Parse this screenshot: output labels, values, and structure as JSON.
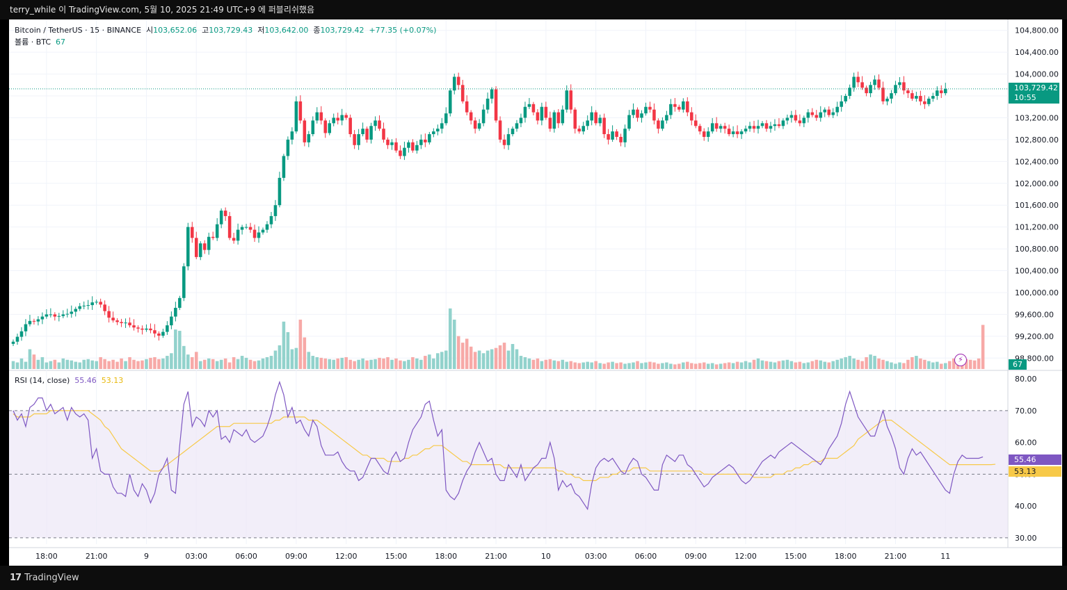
{
  "header": {
    "text": "terry_while 이 TradingView.com, 5월 10, 2025 21:49 UTC+9 에 퍼블리쉬했음"
  },
  "legend": {
    "symbol": "Bitcoin / TetherUS · 15 · BINANCE",
    "open_label": "시",
    "open": "103,652.06",
    "high_label": "고",
    "high": "103,729.43",
    "low_label": "저",
    "low": "103,642.00",
    "close_label": "종",
    "close": "103,729.42",
    "change": "+77.35 (+0.07%)",
    "volume_label": "볼륨 · BTC",
    "volume": "67"
  },
  "rsi_legend": {
    "label": "RSI (14, close)",
    "rsi": "55.46",
    "ma": "53.13"
  },
  "price_axis": {
    "current_price": "103,729.42",
    "countdown": "10:55",
    "volume_tag": "67",
    "rsi_tag": "55.46",
    "rsi_ma_tag": "53.13"
  },
  "footer": {
    "brand": "TradingView",
    "brand_mark": "17"
  },
  "colors": {
    "up": "#089981",
    "down": "#f23645",
    "rsi": "#7e57c2",
    "rsi_ma": "#f7c948",
    "band": "#ede7f6"
  },
  "chart_data": [
    {
      "type": "candlestick",
      "ylim": [
        98600,
        105000
      ],
      "y_ticks": [
        98800,
        99200,
        99600,
        100000,
        100400,
        100800,
        101200,
        101600,
        102000,
        102400,
        102800,
        103200,
        103600,
        104000,
        104400,
        104800
      ],
      "y_tick_labels": [
        "98,800.00",
        "99,200.00",
        "99,600.00",
        "100,000.00",
        "100,400.00",
        "100,800.00",
        "101,200.00",
        "101,600.00",
        "102,000.00",
        "102,400.00",
        "102,800.00",
        "103,200.00",
        "103,600.00",
        "104,000.00",
        "104,400.00",
        "104,800.00"
      ],
      "x_tick_labels": [
        "18:00",
        "21:00",
        "9",
        "03:00",
        "06:00",
        "09:00",
        "12:00",
        "15:00",
        "18:00",
        "21:00",
        "10",
        "03:00",
        "06:00",
        "09:00",
        "12:00",
        "15:00",
        "18:00",
        "21:00",
        "11"
      ],
      "x_tick_index": [
        8,
        20,
        32,
        44,
        56,
        68,
        80,
        92,
        104,
        116,
        128,
        140,
        152,
        164,
        176,
        188,
        200,
        212,
        224
      ],
      "close": [
        99100,
        99190,
        99290,
        99420,
        99480,
        99470,
        99510,
        99560,
        99600,
        99600,
        99560,
        99570,
        99600,
        99610,
        99650,
        99700,
        99750,
        99760,
        99770,
        99820,
        99830,
        99780,
        99660,
        99540,
        99490,
        99460,
        99440,
        99450,
        99400,
        99360,
        99340,
        99320,
        99340,
        99310,
        99250,
        99210,
        99280,
        99400,
        99560,
        99720,
        99900,
        100480,
        101200,
        101000,
        100650,
        100900,
        100780,
        101020,
        101000,
        101250,
        101500,
        101400,
        101000,
        100950,
        101150,
        101200,
        101200,
        101150,
        101000,
        101100,
        101150,
        101250,
        101400,
        101600,
        102100,
        102500,
        102800,
        102950,
        103500,
        103150,
        102750,
        102900,
        103150,
        103300,
        103150,
        102920,
        103100,
        103200,
        103150,
        103250,
        103200,
        102900,
        102700,
        102900,
        103000,
        102800,
        103050,
        103150,
        103000,
        102800,
        102700,
        102750,
        102600,
        102500,
        102650,
        102750,
        102600,
        102700,
        102800,
        102750,
        102900,
        102950,
        103000,
        103100,
        103280,
        103700,
        103950,
        103800,
        103500,
        103300,
        103150,
        103000,
        103100,
        103350,
        103550,
        103720,
        103150,
        102800,
        102700,
        102900,
        103000,
        103100,
        103200,
        103400,
        103450,
        103300,
        103150,
        103400,
        103200,
        103000,
        103300,
        103100,
        103350,
        103700,
        103350,
        103000,
        102950,
        103050,
        103150,
        103300,
        103100,
        103200,
        102900,
        102800,
        102950,
        102850,
        102750,
        103000,
        103250,
        103350,
        103200,
        103280,
        103400,
        103350,
        103150,
        103000,
        103150,
        103250,
        103450,
        103400,
        103350,
        103500,
        103300,
        103150,
        103050,
        102950,
        102850,
        102950,
        103100,
        103000,
        103050,
        103000,
        102900,
        102950,
        102900,
        102950,
        103000,
        103050,
        103000,
        103050,
        103100,
        103000,
        103050,
        103080,
        103050,
        103150,
        103200,
        103250,
        103150,
        103100,
        103200,
        103300,
        103250,
        103200,
        103300,
        103350,
        103250,
        103300,
        103400,
        103500,
        103600,
        103750,
        103950,
        103850,
        103750,
        103650,
        103800,
        103900,
        103750,
        103500,
        103550,
        103650,
        103800,
        103850,
        103700,
        103650,
        103550,
        103600,
        103500,
        103450,
        103550,
        103600,
        103700,
        103650,
        103729
      ]
    },
    {
      "type": "bar",
      "name": "Volume",
      "ylim": [
        0,
        95
      ],
      "values": [
        12,
        10,
        16,
        11,
        30,
        22,
        14,
        18,
        10,
        12,
        14,
        10,
        16,
        14,
        13,
        11,
        10,
        14,
        15,
        13,
        12,
        18,
        15,
        12,
        14,
        11,
        16,
        12,
        18,
        14,
        12,
        13,
        15,
        17,
        18,
        15,
        16,
        20,
        24,
        60,
        58,
        35,
        22,
        18,
        26,
        12,
        14,
        16,
        15,
        12,
        14,
        16,
        10,
        18,
        15,
        20,
        17,
        14,
        12,
        13,
        16,
        18,
        20,
        28,
        36,
        72,
        56,
        30,
        32,
        75,
        48,
        26,
        20,
        18,
        17,
        16,
        15,
        14,
        16,
        17,
        18,
        14,
        12,
        14,
        16,
        13,
        14,
        15,
        17,
        16,
        18,
        14,
        16,
        13,
        12,
        14,
        18,
        16,
        14,
        20,
        22,
        16,
        24,
        26,
        28,
        92,
        75,
        50,
        40,
        46,
        34,
        26,
        28,
        24,
        28,
        30,
        32,
        36,
        40,
        28,
        38,
        30,
        20,
        18,
        16,
        14,
        16,
        12,
        14,
        15,
        13,
        12,
        14,
        11,
        12,
        10,
        9,
        10,
        11,
        10,
        12,
        9,
        8,
        10,
        11,
        9,
        10,
        8,
        9,
        10,
        12,
        9,
        10,
        11,
        10,
        8,
        9,
        10,
        8,
        7,
        8,
        10,
        11,
        9,
        8,
        9,
        10,
        8,
        9,
        7,
        8,
        9,
        10,
        9,
        11,
        10,
        12,
        10,
        14,
        16,
        13,
        12,
        11,
        10,
        12,
        13,
        14,
        12,
        10,
        11,
        9,
        10,
        12,
        14,
        13,
        11,
        10,
        12,
        14,
        16,
        18,
        20,
        16,
        14,
        12,
        18,
        22,
        20,
        16,
        14,
        12,
        10,
        8,
        10,
        9,
        14,
        18,
        20,
        16,
        14,
        12,
        10,
        11,
        8,
        9,
        12,
        16,
        20,
        18,
        15,
        14,
        13,
        16,
        67
      ],
      "current": 67
    },
    {
      "type": "line",
      "name": "RSI (14, close)",
      "ylim": [
        28,
        82
      ],
      "y_ticks": [
        30,
        40,
        50,
        60,
        70,
        80
      ],
      "y_tick_labels": [
        "30.00",
        "40.00",
        "50.00",
        "60.00",
        "70.00",
        "80.00"
      ],
      "band": [
        30,
        70
      ],
      "midline": 50,
      "series": [
        {
          "name": "RSI",
          "values": [
            70,
            67,
            69,
            65,
            71,
            72,
            74,
            74,
            70,
            72,
            69,
            70,
            71,
            67,
            71,
            69,
            68,
            69,
            67,
            55,
            58,
            51,
            50,
            50,
            46,
            44,
            44,
            43,
            50,
            45,
            43,
            47,
            45,
            41,
            44,
            50,
            52,
            55,
            45,
            44,
            59,
            72,
            76,
            65,
            68,
            67,
            65,
            70,
            68,
            70,
            61,
            62,
            60,
            64,
            63,
            62,
            64,
            61,
            60,
            61,
            62,
            65,
            69,
            75,
            79,
            75,
            68,
            71,
            66,
            67,
            64,
            62,
            67,
            65,
            59,
            56,
            56,
            56,
            57,
            54,
            52,
            51,
            51,
            48,
            49,
            52,
            55,
            55,
            53,
            51,
            50,
            55,
            57,
            54,
            55,
            60,
            64,
            66,
            68,
            72,
            73,
            67,
            62,
            64,
            45,
            43,
            42,
            44,
            48,
            51,
            53,
            57,
            60,
            57,
            54,
            55,
            50,
            48,
            48,
            53,
            51,
            49,
            53,
            48,
            50,
            52,
            53,
            55,
            55,
            60,
            55,
            45,
            48,
            46,
            47,
            44,
            43,
            41,
            39,
            47,
            52,
            54,
            55,
            54,
            55,
            53,
            51,
            50,
            53,
            55,
            54,
            50,
            49,
            47,
            45,
            45,
            53,
            56,
            55,
            54,
            56,
            56,
            53,
            52,
            50,
            48,
            46,
            47,
            49,
            50,
            51,
            52,
            53,
            52,
            50,
            48,
            47,
            48,
            50,
            52,
            54,
            55,
            56,
            55,
            57,
            58,
            59,
            60,
            59,
            58,
            57,
            56,
            55,
            54,
            53,
            55,
            58,
            60,
            62,
            66,
            72,
            76,
            72,
            68,
            66,
            64,
            62,
            62,
            66,
            70,
            65,
            62,
            58,
            52,
            50,
            55,
            58,
            56,
            57,
            55,
            53,
            51,
            49,
            47,
            45,
            44,
            50,
            54,
            56,
            55,
            55,
            55,
            55,
            55.46
          ]
        },
        {
          "name": "RSI-based MA",
          "values": [
            69,
            68,
            68,
            68,
            68,
            69,
            69,
            69,
            69,
            70,
            70,
            70,
            70,
            70,
            70,
            70,
            70,
            70,
            70,
            69,
            68,
            67,
            65,
            64,
            62,
            60,
            58,
            57,
            56,
            55,
            54,
            53,
            52,
            51,
            51,
            51,
            52,
            53,
            54,
            55,
            56,
            57,
            58,
            59,
            60,
            61,
            62,
            63,
            64,
            65,
            65,
            65,
            65,
            66,
            66,
            66,
            66,
            66,
            66,
            66,
            66,
            66,
            66,
            67,
            67,
            68,
            68,
            68,
            68,
            68,
            68,
            67,
            67,
            67,
            66,
            65,
            64,
            63,
            62,
            61,
            60,
            59,
            58,
            57,
            56,
            56,
            55,
            55,
            55,
            55,
            54,
            54,
            54,
            54,
            55,
            55,
            56,
            56,
            57,
            58,
            58,
            59,
            59,
            59,
            58,
            57,
            56,
            55,
            54,
            54,
            53,
            53,
            53,
            53,
            53,
            53,
            53,
            53,
            52,
            52,
            52,
            52,
            52,
            52,
            52,
            52,
            52,
            52,
            52,
            52,
            52,
            51,
            51,
            50,
            50,
            49,
            49,
            48,
            48,
            48,
            48,
            49,
            49,
            49,
            50,
            50,
            51,
            51,
            51,
            52,
            52,
            52,
            52,
            51,
            51,
            51,
            51,
            51,
            51,
            51,
            51,
            51,
            51,
            51,
            51,
            51,
            50,
            50,
            50,
            50,
            50,
            50,
            50,
            50,
            50,
            50,
            50,
            50,
            49,
            49,
            49,
            49,
            49,
            50,
            50,
            50,
            51,
            51,
            52,
            52,
            53,
            53,
            54,
            54,
            54,
            55,
            55,
            55,
            55,
            56,
            57,
            58,
            59,
            61,
            62,
            63,
            64,
            65,
            66,
            67,
            67,
            67,
            66,
            65,
            64,
            63,
            62,
            61,
            60,
            59,
            58,
            57,
            56,
            55,
            54,
            53,
            53,
            53,
            53,
            53,
            53,
            53,
            53,
            53,
            53,
            53,
            53.13
          ]
        }
      ]
    }
  ]
}
